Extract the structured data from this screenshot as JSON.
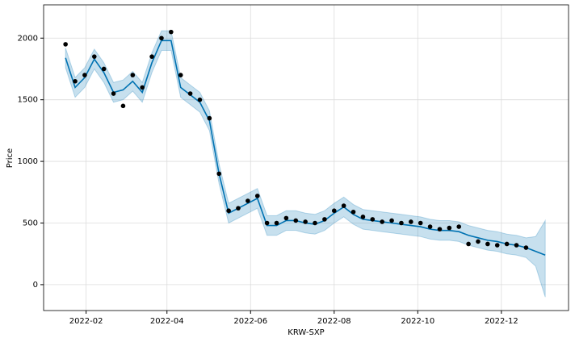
{
  "chart_data": {
    "type": "forecast",
    "xlabel": "KRW-SXP",
    "ylabel": "Price",
    "x": [
      "2022-01-17",
      "2022-01-24",
      "2022-01-31",
      "2022-02-07",
      "2022-02-14",
      "2022-02-21",
      "2022-02-28",
      "2022-03-07",
      "2022-03-14",
      "2022-03-21",
      "2022-03-28",
      "2022-04-04",
      "2022-04-11",
      "2022-04-18",
      "2022-04-25",
      "2022-05-02",
      "2022-05-09",
      "2022-05-16",
      "2022-05-23",
      "2022-05-30",
      "2022-06-06",
      "2022-06-13",
      "2022-06-20",
      "2022-06-27",
      "2022-07-04",
      "2022-07-11",
      "2022-07-18",
      "2022-07-25",
      "2022-08-01",
      "2022-08-08",
      "2022-08-15",
      "2022-08-22",
      "2022-08-29",
      "2022-09-05",
      "2022-09-12",
      "2022-09-19",
      "2022-09-26",
      "2022-10-03",
      "2022-10-10",
      "2022-10-17",
      "2022-10-24",
      "2022-10-31",
      "2022-11-07",
      "2022-11-14",
      "2022-11-21",
      "2022-11-28",
      "2022-12-05",
      "2022-12-12",
      "2022-12-19",
      "2022-12-26",
      "2023-01-02"
    ],
    "series": [
      {
        "color": "#000000",
        "values": [
          1950,
          1650,
          1700,
          1850,
          1750,
          1550,
          1450,
          1700,
          1600,
          1850,
          2000,
          2050,
          1700,
          1550,
          1500,
          1350,
          900,
          600,
          620,
          680,
          720,
          500,
          500,
          540,
          520,
          510,
          500,
          530,
          600,
          640,
          590,
          550,
          530,
          510,
          520,
          500,
          510,
          500,
          470,
          450,
          460,
          470,
          330,
          350,
          330,
          320,
          330,
          320,
          300,
          null,
          null
        ]
      },
      {
        "color": "#0072b2",
        "values": [
          1840,
          1600,
          1680,
          1830,
          1720,
          1560,
          1580,
          1650,
          1560,
          1800,
          1980,
          1980,
          1600,
          1540,
          1480,
          1330,
          900,
          580,
          620,
          660,
          700,
          480,
          480,
          520,
          520,
          500,
          490,
          520,
          580,
          630,
          570,
          530,
          520,
          510,
          500,
          490,
          480,
          470,
          450,
          440,
          440,
          430,
          400,
          380,
          360,
          350,
          330,
          320,
          300,
          270,
          240
        ]
      }
    ],
    "band": {
      "color": "#0072b2",
      "lower": [
        1760,
        1520,
        1600,
        1750,
        1640,
        1480,
        1500,
        1570,
        1480,
        1720,
        1900,
        1900,
        1520,
        1460,
        1400,
        1250,
        820,
        500,
        540,
        580,
        620,
        400,
        400,
        440,
        440,
        420,
        410,
        440,
        500,
        550,
        490,
        450,
        440,
        430,
        420,
        410,
        400,
        390,
        370,
        360,
        360,
        350,
        320,
        300,
        280,
        270,
        250,
        240,
        220,
        150,
        -100
      ],
      "upper": [
        1920,
        1680,
        1760,
        1910,
        1800,
        1640,
        1660,
        1730,
        1640,
        1880,
        2060,
        2060,
        1680,
        1620,
        1560,
        1410,
        980,
        660,
        700,
        740,
        780,
        560,
        560,
        600,
        600,
        580,
        570,
        600,
        660,
        710,
        650,
        610,
        600,
        590,
        580,
        570,
        560,
        550,
        530,
        520,
        520,
        510,
        480,
        460,
        440,
        430,
        410,
        400,
        380,
        390,
        520
      ]
    },
    "xlim": [
      "2022-01-01",
      "2023-01-19"
    ],
    "xticks": [
      {
        "value": "2022-02-01",
        "label": "2022-02"
      },
      {
        "value": "2022-04-01",
        "label": "2022-04"
      },
      {
        "value": "2022-06-01",
        "label": "2022-06"
      },
      {
        "value": "2022-08-01",
        "label": "2022-08"
      },
      {
        "value": "2022-10-01",
        "label": "2022-10"
      },
      {
        "value": "2022-12-01",
        "label": "2022-12"
      }
    ],
    "ylim": [
      -210,
      2270
    ],
    "yticks": [
      0,
      500,
      1000,
      1500,
      2000
    ],
    "grid": true
  }
}
